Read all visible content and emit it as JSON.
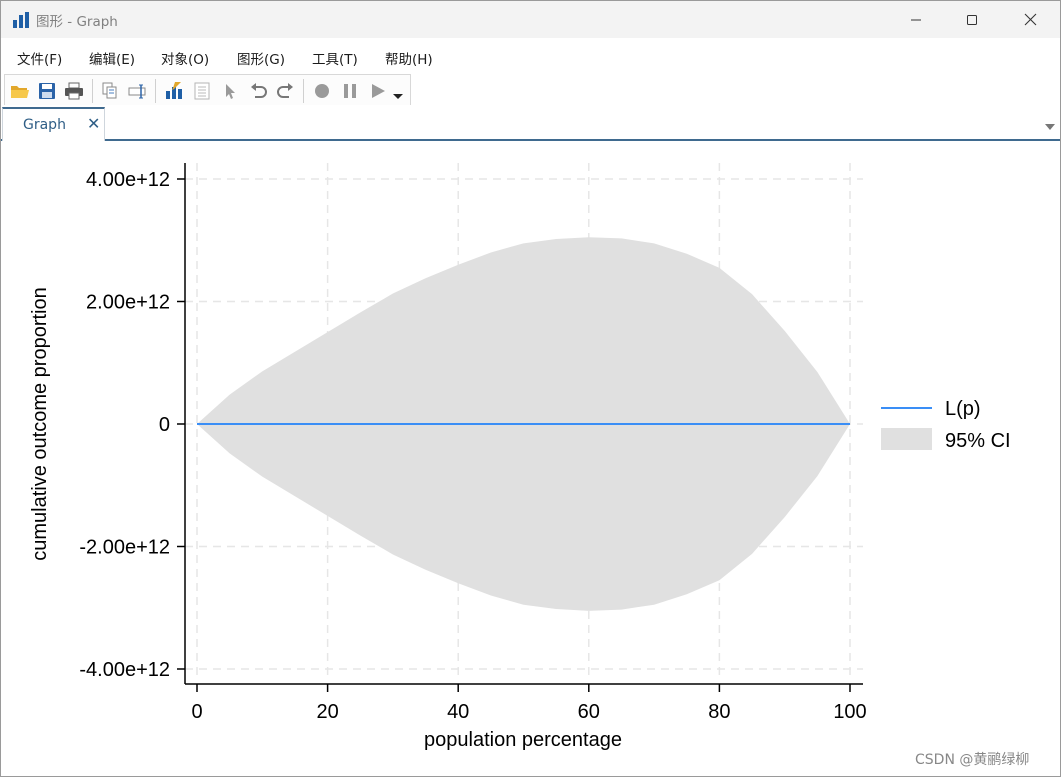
{
  "window": {
    "title": "图形 - Graph"
  },
  "menu": [
    "文件(F)",
    "编辑(E)",
    "对象(O)",
    "图形(G)",
    "工具(T)",
    "帮助(H)"
  ],
  "toolbar": {
    "icons": [
      "open-folder-icon",
      "save-icon",
      "print-icon",
      "copy-icon",
      "rename-icon",
      "graph-editor-icon",
      "data-editor-icon",
      "pointer-icon",
      "undo-icon",
      "redo-icon",
      "record-icon",
      "pause-icon",
      "play-icon",
      "dropdown-arrow-icon"
    ]
  },
  "tabs": [
    {
      "label": "Graph",
      "close": "✕"
    }
  ],
  "chart_data": {
    "type": "area",
    "xlabel": "population percentage",
    "ylabel": "cumulative outcome proportion",
    "xlim": [
      0,
      100
    ],
    "ylim": [
      -4000000000000,
      4000000000000
    ],
    "xticks": [
      0,
      20,
      40,
      60,
      80,
      100
    ],
    "xtick_labels": [
      "0",
      "20",
      "40",
      "60",
      "80",
      "100"
    ],
    "yticks": [
      4000000000000,
      2000000000000,
      0,
      -2000000000000,
      -4000000000000
    ],
    "ytick_labels": [
      "4.00e+12",
      "2.00e+12",
      "0",
      "-2.00e+12",
      "-4.00e+12"
    ],
    "grid": true,
    "legend_position": "right",
    "series": [
      {
        "name": "L(p)",
        "kind": "line",
        "color": "#3a8ef6",
        "x": [
          0,
          100
        ],
        "y": [
          0,
          0
        ]
      },
      {
        "name": "95% CI",
        "kind": "band",
        "color": "#e0e0e0",
        "x": [
          0,
          5,
          10,
          15,
          20,
          25,
          30,
          35,
          40,
          45,
          50,
          55,
          60,
          65,
          70,
          75,
          80,
          85,
          90,
          95,
          100
        ],
        "upper": [
          0,
          480000000000,
          860000000000,
          1180000000000,
          1500000000000,
          1820000000000,
          2130000000000,
          2380000000000,
          2600000000000,
          2800000000000,
          2950000000000,
          3020000000000,
          3050000000000,
          3030000000000,
          2950000000000,
          2780000000000,
          2550000000000,
          2120000000000,
          1520000000000,
          850000000000,
          0
        ],
        "lower": [
          0,
          -480000000000,
          -860000000000,
          -1180000000000,
          -1500000000000,
          -1820000000000,
          -2130000000000,
          -2380000000000,
          -2600000000000,
          -2800000000000,
          -2950000000000,
          -3020000000000,
          -3050000000000,
          -3030000000000,
          -2950000000000,
          -2780000000000,
          -2550000000000,
          -2120000000000,
          -1520000000000,
          -850000000000,
          0
        ]
      }
    ]
  },
  "watermark": "CSDN @黄鹂绿柳"
}
